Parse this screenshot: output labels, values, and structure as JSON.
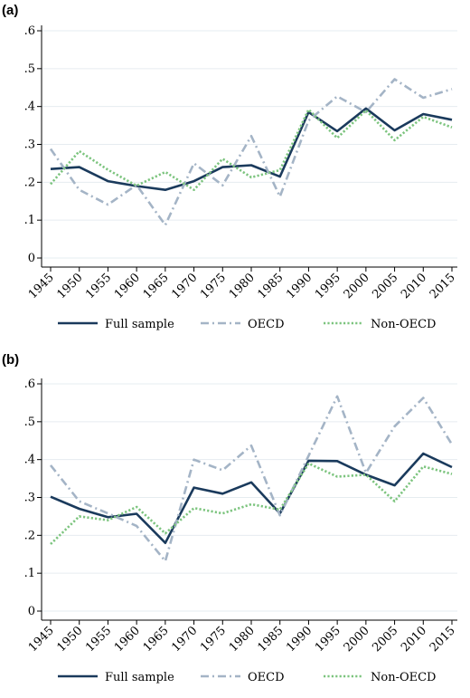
{
  "chart_data": [
    {
      "panel": "(a)",
      "type": "line",
      "x": [
        1945,
        1950,
        1955,
        1960,
        1965,
        1970,
        1975,
        1980,
        1985,
        1990,
        1995,
        2000,
        2005,
        2010,
        2015
      ],
      "xticks": [
        "1945",
        "1950",
        "1955",
        "1960",
        "1965",
        "1970",
        "1975",
        "1980",
        "1985",
        "1990",
        "1995",
        "2000",
        "2005",
        "2010",
        "2015"
      ],
      "yticks": [
        "0",
        ".1",
        ".2",
        ".3",
        ".4",
        ".5",
        ".6"
      ],
      "ylim": [
        0,
        0.6
      ],
      "grid": true,
      "legend_position": "bottom",
      "series": [
        {
          "name": "Full sample",
          "style": "solid",
          "color": "#1a3a5c",
          "values": [
            0.235,
            0.24,
            0.203,
            0.19,
            0.18,
            0.203,
            0.24,
            0.245,
            0.215,
            0.385,
            0.335,
            0.395,
            0.337,
            0.38,
            0.365
          ]
        },
        {
          "name": "OECD",
          "style": "dashdot",
          "color": "#a4b4c6",
          "values": [
            0.288,
            0.18,
            0.141,
            0.193,
            0.087,
            0.25,
            0.192,
            0.322,
            0.162,
            0.363,
            0.427,
            0.385,
            0.472,
            0.423,
            0.446
          ]
        },
        {
          "name": "Non-OECD",
          "style": "dotted",
          "color": "#7cc47e",
          "values": [
            0.195,
            0.282,
            0.233,
            0.191,
            0.227,
            0.18,
            0.262,
            0.213,
            0.232,
            0.392,
            0.317,
            0.39,
            0.311,
            0.373,
            0.345
          ]
        }
      ]
    },
    {
      "panel": "(b)",
      "type": "line",
      "x": [
        1945,
        1950,
        1955,
        1960,
        1965,
        1970,
        1975,
        1980,
        1985,
        1990,
        1995,
        2000,
        2005,
        2010,
        2015
      ],
      "xticks": [
        "1945",
        "1950",
        "1955",
        "1960",
        "1965",
        "1970",
        "1975",
        "1980",
        "1985",
        "1990",
        "1995",
        "2000",
        "2005",
        "2010",
        "2015"
      ],
      "yticks": [
        "0",
        ".1",
        ".2",
        ".3",
        ".4",
        ".5",
        ".6"
      ],
      "ylim": [
        0,
        0.6
      ],
      "grid": true,
      "legend_position": "bottom",
      "series": [
        {
          "name": "Full sample",
          "style": "solid",
          "color": "#1a3a5c",
          "values": [
            0.302,
            0.27,
            0.248,
            0.257,
            0.18,
            0.326,
            0.31,
            0.34,
            0.258,
            0.397,
            0.396,
            0.36,
            0.332,
            0.416,
            0.38
          ]
        },
        {
          "name": "OECD",
          "style": "dashdot",
          "color": "#a4b4c6",
          "values": [
            0.385,
            0.29,
            0.258,
            0.225,
            0.132,
            0.4,
            0.372,
            0.437,
            0.253,
            0.41,
            0.567,
            0.365,
            0.488,
            0.563,
            0.44
          ]
        },
        {
          "name": "Non-OECD",
          "style": "dotted",
          "color": "#7cc47e",
          "values": [
            0.177,
            0.25,
            0.24,
            0.275,
            0.205,
            0.272,
            0.258,
            0.282,
            0.268,
            0.39,
            0.355,
            0.36,
            0.29,
            0.382,
            0.362
          ]
        }
      ]
    }
  ]
}
